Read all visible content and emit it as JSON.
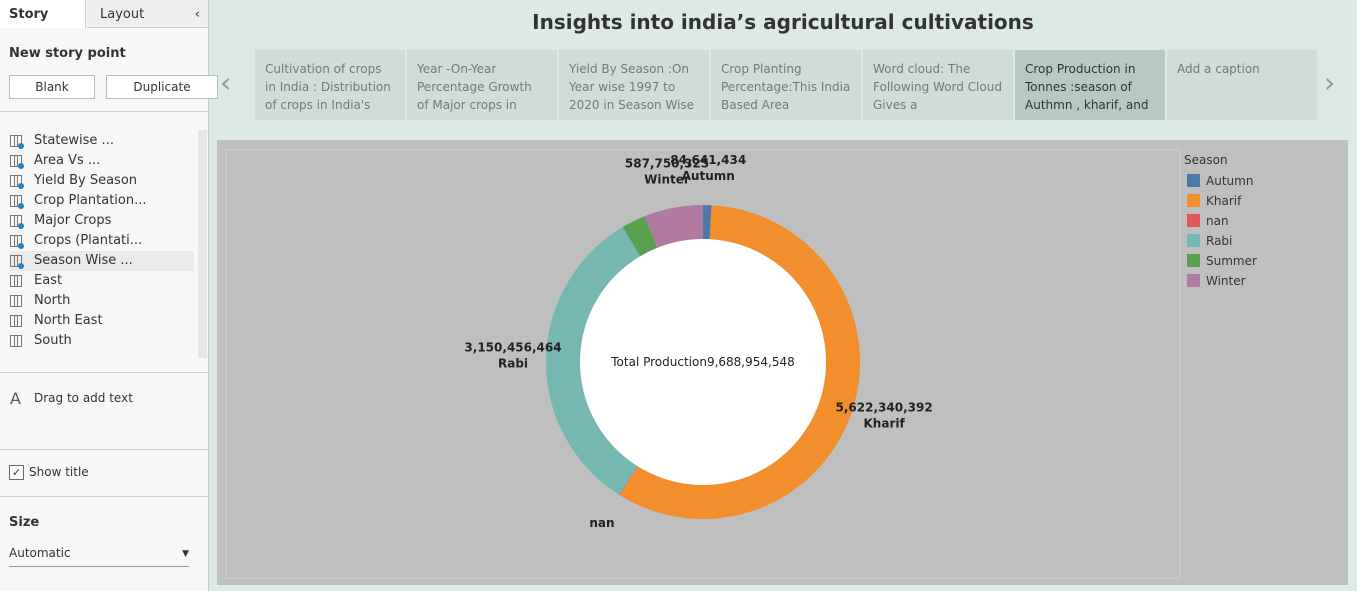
{
  "sidebar": {
    "tabs": [
      "Story",
      "Layout"
    ],
    "new_story_point": "New story point",
    "buttons": [
      "Blank",
      "Duplicate"
    ],
    "sheets": [
      "Statewise ...",
      "Area Vs ...",
      "Yield By Season",
      "Crop Plantation...",
      "Major Crops",
      "Crops (Plantati...",
      "Season Wise ...",
      "East",
      "North",
      "North East",
      "South"
    ],
    "drag_text": "Drag to add text",
    "show_title": "Show title",
    "size_title": "Size",
    "size_value": "Automatic"
  },
  "story": {
    "title": "Insights into india’s agricultural cultivations",
    "captions": [
      "Cultivation of crops in India : Distribution of crops in India's",
      "Year -On-Year Percentage Growth of Major crops in india -",
      "Yield By Season :On Year wise 1997 to 2020 in Season Wise",
      "Crop Planting Percentage:This India Based Area",
      "Word cloud: The Following Word Cloud Gives a representation",
      "Crop Production in Tonnes :season  of Authmn , kharif, and",
      "Add a caption"
    ],
    "active": 5
  },
  "chart_data": {
    "type": "donut",
    "legend_title": "Season",
    "categories": [
      "Autumn",
      "Kharif",
      "nan",
      "Rabi",
      "Summer",
      "Winter"
    ],
    "values": [
      84641434,
      5622340392,
      5000000,
      3150456464,
      239000000,
      587750325
    ],
    "value_labels": [
      "84,641,434",
      "5,622,340,392",
      null,
      "3,150,456,464",
      null,
      "587,750,325"
    ],
    "labeled": [
      true,
      true,
      true,
      true,
      false,
      true
    ],
    "colors": [
      "#4e79a7",
      "#f28e2b",
      "#e15759",
      "#76b7b2",
      "#59a14f",
      "#b07aa1"
    ],
    "center_label": "Total Production",
    "total": {
      "value": 9688954548,
      "label": "9,688,954,548"
    },
    "legend": "right"
  }
}
